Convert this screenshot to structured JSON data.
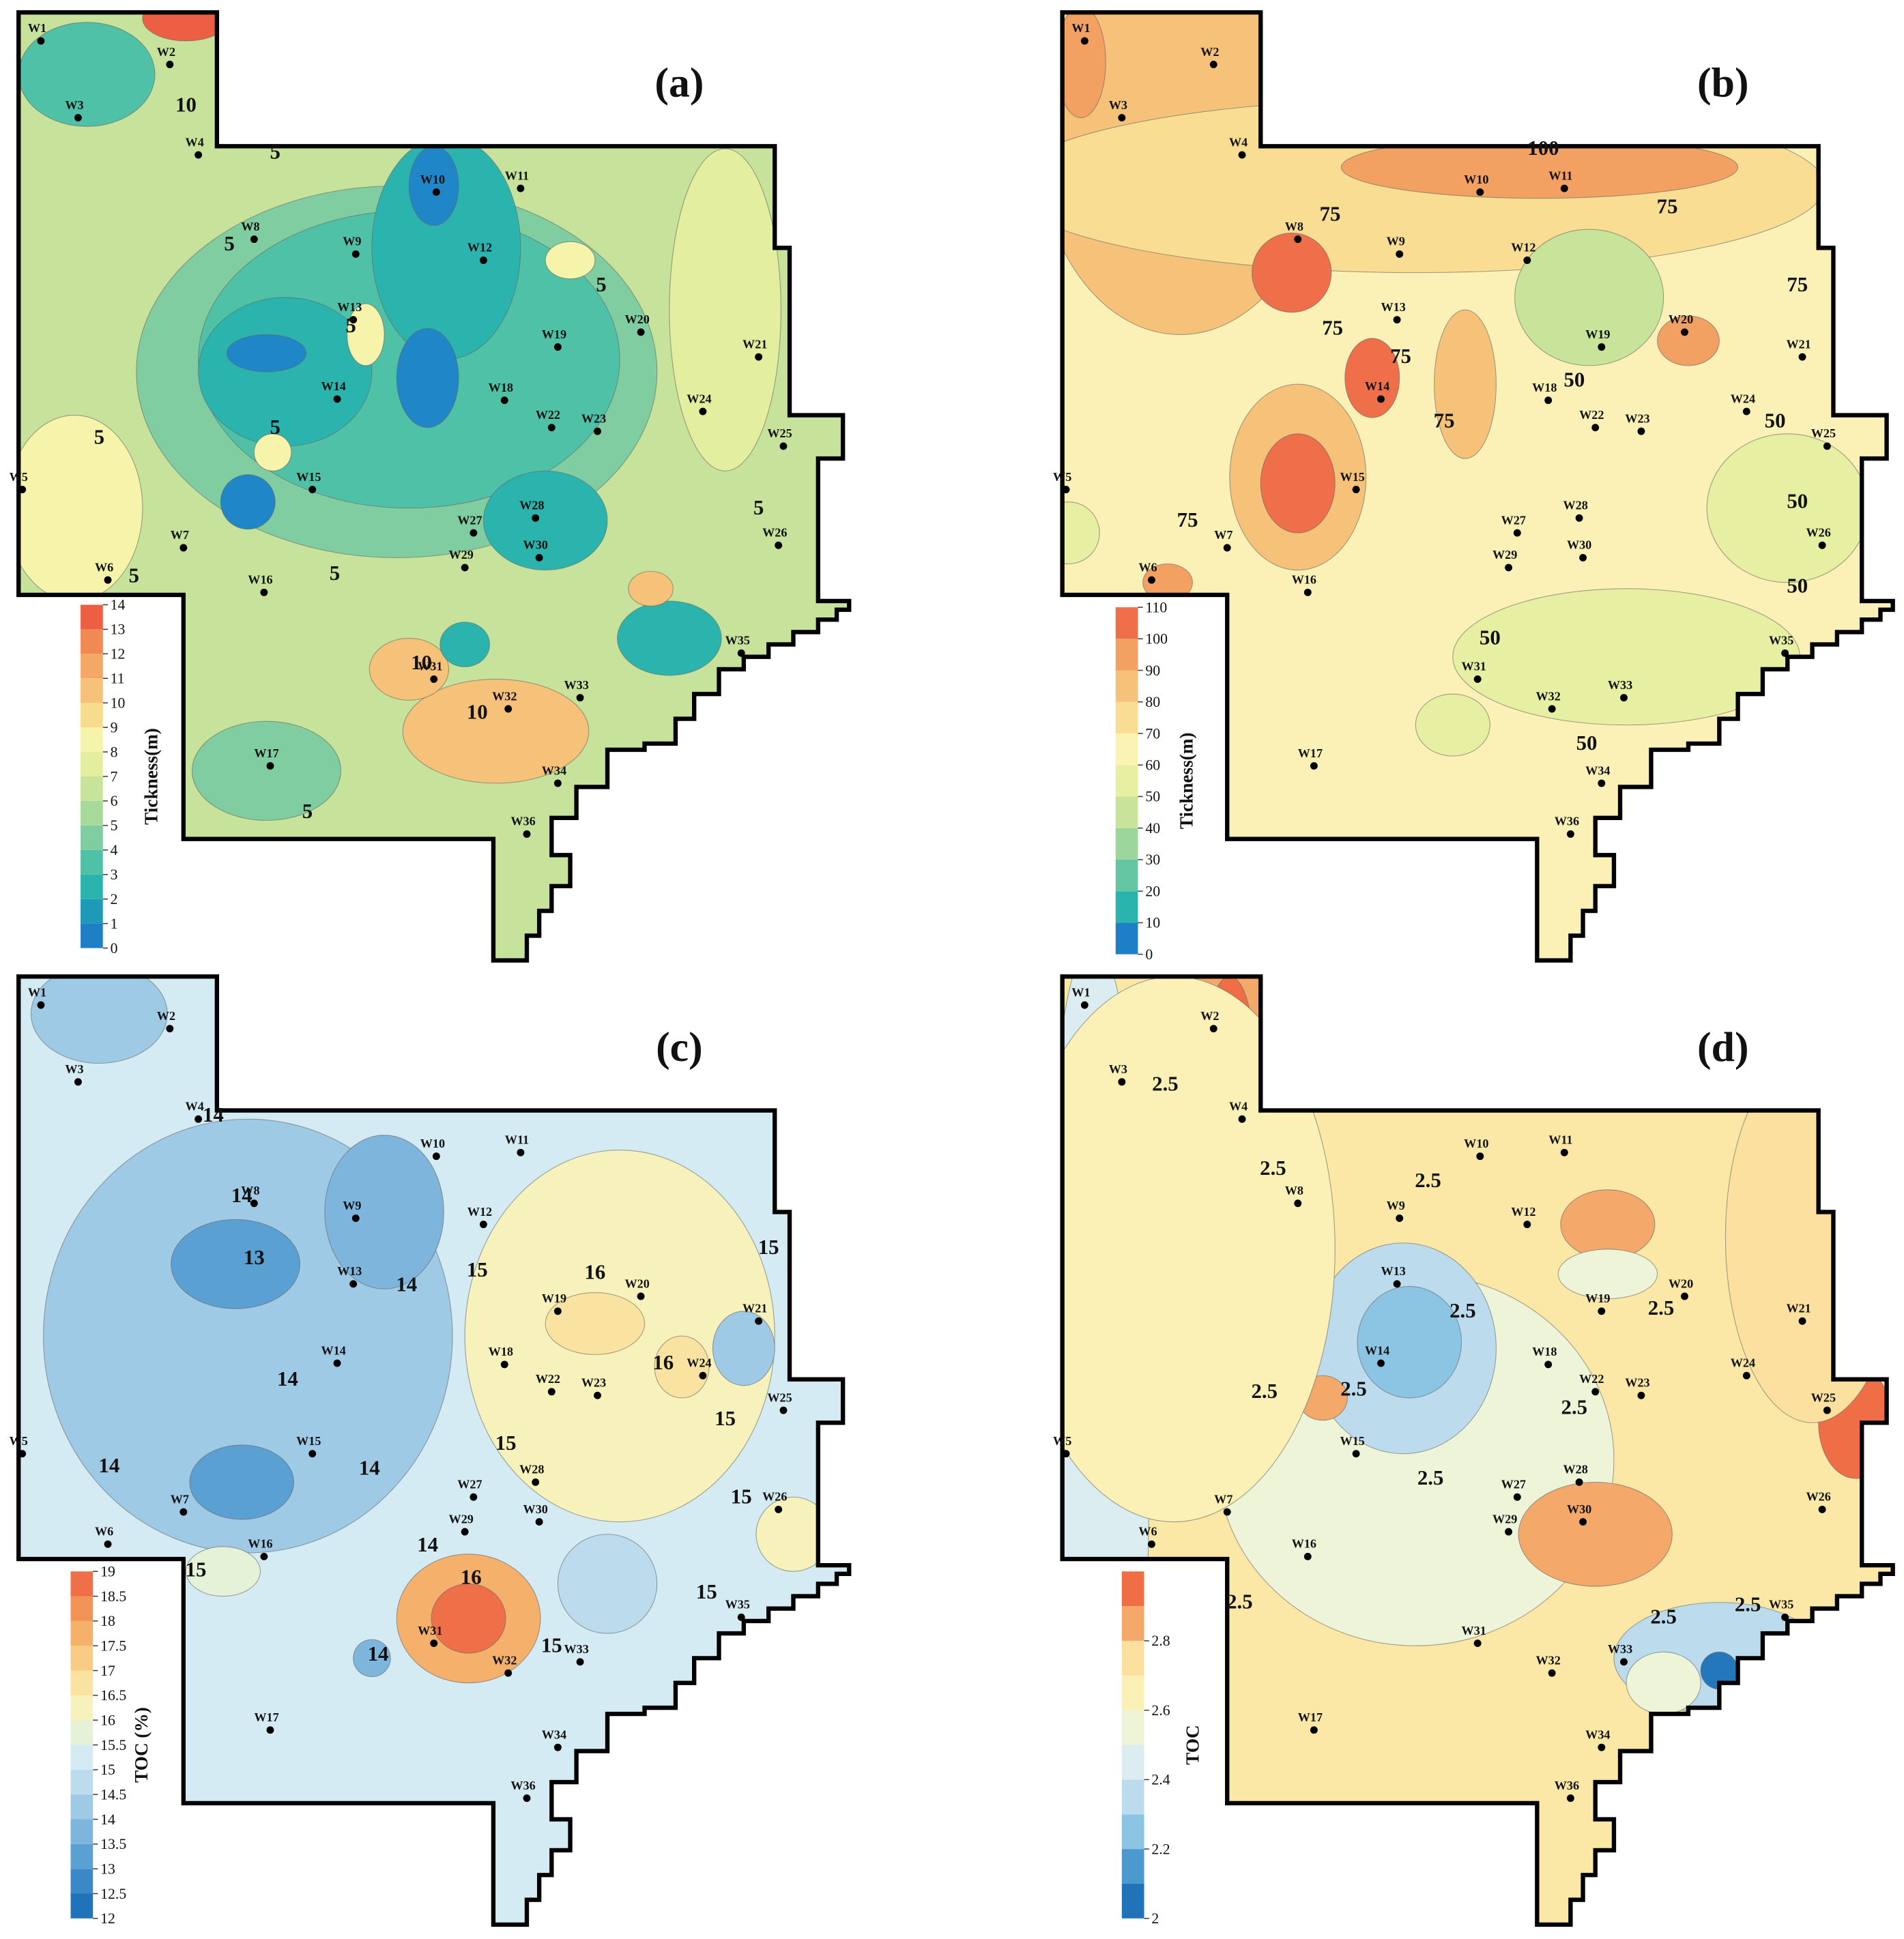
{
  "wells": [
    "W1",
    "W2",
    "W3",
    "W4",
    "W5",
    "W6",
    "W7",
    "W8",
    "W9",
    "W10",
    "W11",
    "W12",
    "W13",
    "W14",
    "W15",
    "W16",
    "W17",
    "W18",
    "W19",
    "W20",
    "W21",
    "W22",
    "W23",
    "W24",
    "W25",
    "W26",
    "W27",
    "W28",
    "W29",
    "W30",
    "W31",
    "W32",
    "W33",
    "W34",
    "W35",
    "W36"
  ],
  "panels": [
    {
      "label": "(a)",
      "colorbar": {
        "title": "Tickness(m)",
        "range": [
          0,
          14
        ],
        "ticks": [
          0,
          1,
          2,
          3,
          4,
          5,
          6,
          7,
          8,
          9,
          10,
          11,
          12,
          13,
          14
        ],
        "colors": [
          "#1f7fc6",
          "#1e9ab8",
          "#2bb3ae",
          "#4fc1a6",
          "#7fcda0",
          "#a6d99a",
          "#c8e49a",
          "#e3ee9f",
          "#f6f3aa",
          "#f8dc8e",
          "#f6c27a",
          "#f3a866",
          "#f08a53",
          "#ec5f43"
        ]
      },
      "contour_labels": [
        "10",
        "5",
        "5",
        "5",
        "5",
        "5",
        "5",
        "5",
        "5",
        "10",
        "10",
        "5",
        "5"
      ]
    },
    {
      "label": "(b)",
      "colorbar": {
        "title": "Tickness(m)",
        "range": [
          0,
          110
        ],
        "ticks": [
          0,
          10,
          20,
          30,
          40,
          50,
          60,
          70,
          80,
          90,
          100,
          110
        ],
        "colors": [
          "#1f7fc6",
          "#2bb3ae",
          "#64c6a3",
          "#9dd69c",
          "#c8e49a",
          "#e6efa2",
          "#fbf3b4",
          "#f9dd93",
          "#f6c27a",
          "#f3a063",
          "#ee6f4a"
        ]
      },
      "contour_labels": [
        "100",
        "75",
        "75",
        "75",
        "75",
        "75",
        "75",
        "50",
        "50",
        "50",
        "50",
        "50",
        "50",
        "75"
      ]
    },
    {
      "label": "(c)",
      "colorbar": {
        "title": "TOC (%)",
        "range": [
          12,
          19
        ],
        "ticks": [
          12,
          12.5,
          13,
          13.5,
          14,
          14.5,
          15,
          15.5,
          16,
          16.5,
          17,
          17.5,
          18,
          18.5,
          19
        ],
        "colors": [
          "#2073b8",
          "#3a88c6",
          "#5ba0d2",
          "#7db5dd",
          "#9ecae6",
          "#bcdcee",
          "#d4ebf3",
          "#e6f2d8",
          "#f7f2bb",
          "#fae3a0",
          "#f8cc84",
          "#f5b06c",
          "#f29358",
          "#ef7048"
        ]
      },
      "contour_labels": [
        "14",
        "14",
        "13",
        "14",
        "15",
        "16",
        "15",
        "16",
        "14",
        "14",
        "14",
        "15",
        "15",
        "15",
        "14",
        "15",
        "16",
        "15",
        "15",
        "14"
      ]
    },
    {
      "label": "(d)",
      "colorbar": {
        "title": "TOC",
        "range": [
          2,
          3
        ],
        "ticks": [
          2,
          2.2,
          2.4,
          2.6,
          2.8
        ],
        "colors": [
          "#2073b8",
          "#4b99cf",
          "#8cc4e4",
          "#bcdcee",
          "#dcedf1",
          "#eef4d8",
          "#fbf0b6",
          "#fbe0a0",
          "#f4a96b",
          "#ef6e45"
        ]
      },
      "contour_labels": [
        "2.5",
        "2.5",
        "2.5",
        "2.5",
        "2.5",
        "2.5",
        "2.5",
        "2.5",
        "2.5",
        "2.5",
        "2.5",
        "2.5"
      ]
    }
  ]
}
